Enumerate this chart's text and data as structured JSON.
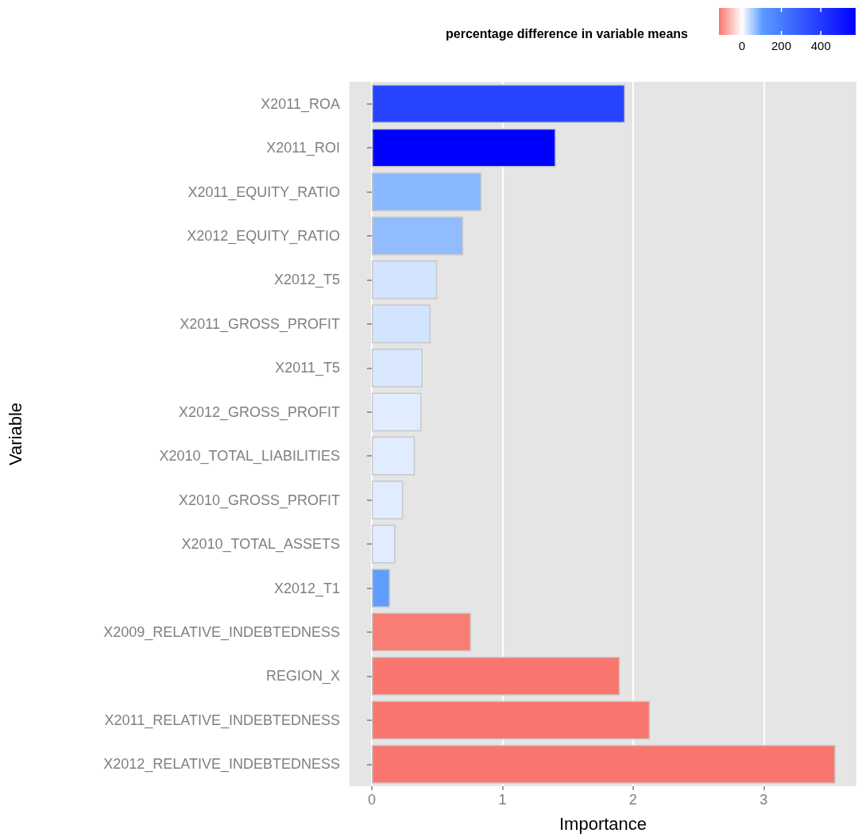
{
  "chart_data": {
    "type": "bar",
    "orientation": "horizontal",
    "xlabel": "Importance",
    "ylabel": "Variable",
    "clabel": "percentage difference in variable means",
    "categories": [
      "X2011_ROA",
      "X2011_ROI",
      "X2011_EQUITY_RATIO",
      "X2012_EQUITY_RATIO",
      "X2012_T5",
      "X2011_GROSS_PROFIT",
      "X2011_T5",
      "X2012_GROSS_PROFIT",
      "X2010_TOTAL_LIABILITIES",
      "X2010_GROSS_PROFIT",
      "X2010_TOTAL_ASSETS",
      "X2012_T1",
      "X2009_RELATIVE_INDEBTEDNESS",
      "REGION_X",
      "X2011_RELATIVE_INDEBTEDNESS",
      "X2012_RELATIVE_INDEBTEDNESS"
    ],
    "values": [
      1.94,
      1.41,
      0.84,
      0.7,
      0.5,
      0.45,
      0.39,
      0.38,
      0.33,
      0.24,
      0.18,
      0.14,
      0.76,
      1.9,
      2.13,
      3.55
    ],
    "cvalues": [
      370,
      576,
      74,
      70,
      28,
      28,
      24,
      20,
      20,
      20,
      20,
      104,
      -110,
      -116,
      -116,
      -116
    ],
    "clim": [
      -116,
      576
    ],
    "cticks": [
      0,
      200,
      400
    ],
    "xlim": [
      -0.17,
      3.71
    ],
    "xticks": [
      0,
      1,
      2,
      3
    ],
    "grid": "x"
  }
}
